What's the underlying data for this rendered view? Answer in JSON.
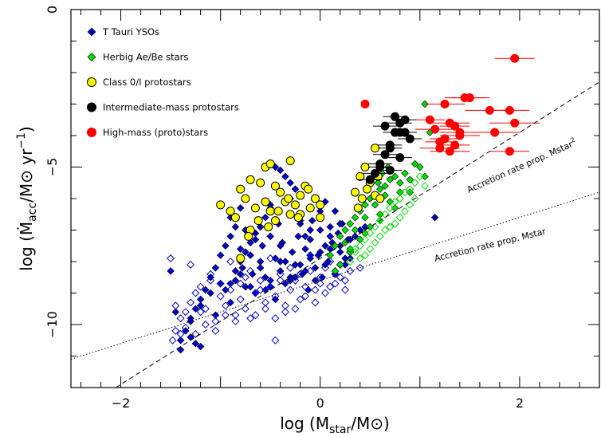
{
  "chart_data": {
    "type": "scatter",
    "title": "",
    "xlabel": "log (M_star/M⊙)",
    "ylabel": "log (Ṁ_acc/M⊙ yr⁻¹)",
    "xlim": [
      -2.5,
      2.8
    ],
    "ylim": [
      -12,
      0
    ],
    "x_ticks": [
      -2,
      0,
      2
    ],
    "y_ticks": [
      0,
      -5,
      -10
    ],
    "grid": false,
    "legend_position": "top-left",
    "series": [
      {
        "name": "T Tauri YSOs",
        "marker": "diamond",
        "color": "#0000cc",
        "filled": true,
        "x": [
          -1.4,
          -1.35,
          -1.3,
          -1.25,
          -1.2,
          -1.15,
          -1.1,
          -1.05,
          -1.0,
          -0.95,
          -0.9,
          -0.85,
          -0.85,
          -0.8,
          -0.78,
          -0.75,
          -0.7,
          -0.68,
          -0.65,
          -0.6,
          -0.58,
          -0.55,
          -0.5,
          -0.5,
          -0.45,
          -0.42,
          -0.4,
          -0.38,
          -0.35,
          -0.3,
          -0.3,
          -0.28,
          -0.25,
          -0.22,
          -0.2,
          -0.18,
          -0.15,
          -0.12,
          -0.1,
          -0.08,
          -0.05,
          -0.02,
          0.0,
          0.02,
          0.05,
          0.08,
          0.1,
          0.12,
          0.15,
          0.18,
          0.2,
          0.22,
          0.25,
          0.28,
          0.3,
          -0.9,
          -0.8,
          -0.7,
          -0.6,
          -0.5,
          -0.4,
          -0.3,
          -0.2,
          -0.1,
          0.0,
          0.1,
          0.2,
          -0.75,
          -0.65,
          -0.55,
          -0.45,
          -0.35,
          -0.25,
          -0.15,
          -0.05,
          0.05,
          0.15,
          0.25,
          -1.5,
          -1.45,
          -1.4,
          -1.3,
          -1.2,
          -1.1,
          -1.05,
          -1.0,
          -0.9,
          -0.8,
          -0.7,
          -0.6,
          -0.5,
          -0.4,
          -0.3,
          -0.2,
          -0.1,
          0.0,
          0.1,
          0.2,
          0.3,
          0.35,
          0.4,
          0.45,
          -0.2,
          -0.25,
          -0.3,
          -0.35,
          -0.4,
          -0.45,
          -0.5,
          -0.55,
          -0.6,
          -0.65,
          -0.7,
          -0.75,
          -0.8,
          -0.85,
          -0.9,
          -0.95,
          -0.1,
          -0.15,
          0.05,
          0.15,
          1.15,
          -1.3,
          -1.25,
          -1.2
        ],
        "y": [
          -10.8,
          -10.2,
          -9.8,
          -9.5,
          -9.2,
          -8.9,
          -8.5,
          -8.2,
          -7.8,
          -7.5,
          -7.2,
          -6.9,
          -8.6,
          -7.6,
          -8.2,
          -7.0,
          -7.8,
          -8.4,
          -7.3,
          -8.0,
          -7.5,
          -8.5,
          -7.2,
          -8.8,
          -7.9,
          -6.8,
          -8.3,
          -7.4,
          -8.0,
          -6.5,
          -8.6,
          -7.7,
          -8.1,
          -7.2,
          -6.8,
          -8.4,
          -7.6,
          -8.9,
          -7.3,
          -6.7,
          -8.2,
          -7.8,
          -7.0,
          -8.5,
          -7.5,
          -8.0,
          -6.9,
          -7.4,
          -8.3,
          -7.1,
          -7.7,
          -6.8,
          -8.1,
          -7.3,
          -7.9,
          -6.6,
          -6.3,
          -7.1,
          -6.9,
          -6.2,
          -7.5,
          -6.0,
          -6.7,
          -7.0,
          -6.4,
          -7.2,
          -6.8,
          -8.8,
          -9.0,
          -8.9,
          -9.2,
          -8.7,
          -8.5,
          -8.3,
          -8.6,
          -8.1,
          -8.4,
          -7.9,
          -8.3,
          -9.6,
          -10.5,
          -9.9,
          -9.4,
          -9.0,
          -9.7,
          -8.7,
          -9.3,
          -8.4,
          -8.8,
          -8.2,
          -8.6,
          -8.0,
          -8.5,
          -8.1,
          -7.9,
          -7.7,
          -7.6,
          -7.5,
          -7.3,
          -7.2,
          -7.0,
          -6.9,
          -5.9,
          -5.7,
          -5.5,
          -5.3,
          -5.1,
          -5.0,
          -6.3,
          -6.6,
          -6.9,
          -7.1,
          -7.4,
          -7.7,
          -8.0,
          -8.3,
          -8.7,
          -8.9,
          -7.8,
          -7.2,
          -6.1,
          -6.4,
          -6.6,
          -10.4,
          -10.6,
          -10.7
        ]
      },
      {
        "name": "T Tauri YSOs (open)",
        "marker": "diamond",
        "color": "#0000cc",
        "filled": false,
        "x": [
          -1.45,
          -1.4,
          -1.35,
          -1.3,
          -1.25,
          -1.2,
          -1.15,
          -1.1,
          -1.05,
          -1.0,
          -0.95,
          -0.9,
          -0.85,
          -0.8,
          -0.75,
          -0.7,
          -0.65,
          -0.6,
          -0.55,
          -0.5,
          -0.45,
          -0.4,
          -0.35,
          -0.3,
          -0.25,
          -0.2,
          -0.15,
          -0.1,
          -0.05,
          0.0,
          0.05,
          0.1,
          0.15,
          0.2,
          0.25,
          0.3,
          -1.48,
          -1.35,
          -1.25,
          -1.15,
          -1.05,
          -0.95,
          -0.85,
          -0.75,
          -0.65,
          -0.55,
          -0.45,
          -0.35,
          -0.25,
          -0.15,
          -0.05,
          0.05,
          0.15,
          0.25,
          -1.5,
          -1.3,
          -1.1,
          -0.9,
          -0.7,
          -0.5,
          -0.3,
          -0.1,
          0.1,
          0.3,
          -1.4,
          -1.2,
          -1.0,
          -0.8,
          -0.6,
          -0.4,
          -0.2,
          0.0,
          0.2,
          0.4,
          -0.45,
          -1.45
        ],
        "y": [
          -10.2,
          -9.8,
          -9.6,
          -9.3,
          -9.0,
          -8.8,
          -9.5,
          -8.6,
          -9.9,
          -8.7,
          -9.4,
          -8.9,
          -9.7,
          -9.2,
          -8.5,
          -9.8,
          -9.0,
          -8.6,
          -9.3,
          -8.8,
          -9.1,
          -8.4,
          -9.6,
          -8.9,
          -8.6,
          -9.2,
          -8.8,
          -8.3,
          -8.9,
          -8.5,
          -8.2,
          -8.8,
          -8.4,
          -8.1,
          -8.6,
          -8.3,
          -10.5,
          -10.1,
          -10.3,
          -10.0,
          -10.2,
          -9.7,
          -9.9,
          -9.5,
          -9.7,
          -9.5,
          -9.8,
          -9.4,
          -9.5,
          -9.1,
          -9.3,
          -9.0,
          -8.7,
          -8.9,
          -7.9,
          -8.1,
          -8.4,
          -8.0,
          -8.3,
          -7.9,
          -8.2,
          -7.8,
          -8.0,
          -7.7,
          -10.3,
          -9.6,
          -9.1,
          -8.7,
          -8.9,
          -8.6,
          -8.4,
          -8.7,
          -8.5,
          -8.2,
          -10.5,
          -9.4
        ]
      },
      {
        "name": "Herbig Ae/Be stars",
        "marker": "diamond",
        "color": "#00dd00",
        "filled": true,
        "x": [
          0.1,
          0.15,
          0.2,
          0.25,
          0.3,
          0.35,
          0.4,
          0.45,
          0.5,
          0.55,
          0.6,
          0.65,
          0.7,
          0.75,
          0.8,
          0.85,
          0.9,
          0.95,
          1.0,
          1.05,
          1.1,
          0.2,
          0.3,
          0.4,
          0.5,
          0.6,
          0.7,
          0.8,
          0.25,
          0.35,
          0.45,
          0.55,
          0.65,
          0.15,
          0.3,
          0.45,
          0.6,
          0.75,
          0.9,
          1.05,
          0.5,
          0.58,
          0.62,
          0.68
        ],
        "y": [
          -7.8,
          -7.5,
          -7.2,
          -7.0,
          -6.8,
          -6.6,
          -6.4,
          -6.2,
          -6.0,
          -5.9,
          -5.7,
          -5.6,
          -5.4,
          -5.3,
          -5.5,
          -5.2,
          -5.4,
          -4.9,
          -5.0,
          -3.0,
          -3.9,
          -8.1,
          -7.7,
          -7.3,
          -6.9,
          -6.5,
          -6.1,
          -5.8,
          -7.4,
          -7.0,
          -6.6,
          -6.2,
          -5.9,
          -8.3,
          -7.6,
          -7.1,
          -6.7,
          -6.3,
          -5.8,
          -5.3,
          -6.0,
          -5.5,
          -5.2,
          -5.0
        ]
      },
      {
        "name": "Herbig Ae/Be stars (open)",
        "marker": "diamond",
        "color": "#00dd00",
        "filled": false,
        "x": [
          0.3,
          0.35,
          0.4,
          0.45,
          0.5,
          0.55,
          0.6,
          0.65,
          0.7,
          0.75,
          0.8,
          0.85,
          0.9,
          0.95,
          1.0,
          0.4,
          0.5,
          0.6,
          0.7,
          0.8,
          0.9,
          0.55,
          0.65,
          0.75,
          0.85,
          0.95,
          1.05,
          0.45,
          0.35
        ],
        "y": [
          -8.0,
          -7.7,
          -7.5,
          -7.3,
          -7.1,
          -6.9,
          -6.7,
          -6.5,
          -6.3,
          -6.1,
          -6.0,
          -5.8,
          -5.7,
          -5.5,
          -5.3,
          -7.9,
          -7.6,
          -7.2,
          -6.9,
          -6.6,
          -6.2,
          -7.4,
          -7.0,
          -6.8,
          -6.4,
          -6.0,
          -5.6,
          -7.8,
          -7.6
        ]
      },
      {
        "name": "Class 0/I protostars",
        "marker": "circle",
        "color": "#ffff00",
        "filled": true,
        "x": [
          -1.0,
          -0.9,
          -0.85,
          -0.8,
          -0.75,
          -0.7,
          -0.7,
          -0.65,
          -0.6,
          -0.55,
          -0.55,
          -0.5,
          -0.5,
          -0.45,
          -0.45,
          -0.4,
          -0.35,
          -0.3,
          -0.3,
          -0.25,
          -0.2,
          -0.2,
          -0.15,
          -0.1,
          -0.05,
          0.0,
          0.0,
          0.35,
          0.4,
          0.42,
          0.45,
          0.5,
          0.55,
          0.55,
          0.6,
          0.58,
          -0.8,
          -0.72,
          -0.62,
          -0.52,
          -0.42,
          -0.32,
          -0.22,
          -0.12,
          0.38,
          0.47
        ],
        "y": [
          -6.2,
          -6.4,
          -6.6,
          -5.7,
          -6.0,
          -5.4,
          -7.0,
          -6.3,
          -5.5,
          -6.1,
          -5.0,
          -6.4,
          -4.9,
          -6.7,
          -5.6,
          -5.8,
          -6.1,
          -4.8,
          -6.5,
          -6.2,
          -5.9,
          -6.5,
          -5.6,
          -6.3,
          -6.0,
          -6.2,
          -6.6,
          -5.8,
          -5.3,
          -6.0,
          -5.0,
          -5.5,
          -4.4,
          -5.9,
          -6.0,
          -5.3,
          -7.9,
          -7.2,
          -6.7,
          -6.9,
          -6.4,
          -6.0,
          -6.6,
          -5.7,
          -6.3,
          -5.7
        ]
      },
      {
        "name": "Intermediate-mass protostars",
        "marker": "circle",
        "color": "#000000",
        "filled": true,
        "x": [
          0.5,
          0.55,
          0.6,
          0.65,
          0.7,
          0.75,
          0.8,
          0.85,
          0.9,
          0.6,
          0.7,
          0.8,
          0.65,
          0.75,
          0.85,
          0.7,
          0.8
        ],
        "y": [
          -5.4,
          -5.2,
          -4.9,
          -4.6,
          -4.3,
          -3.9,
          -3.6,
          -3.5,
          -4.1,
          -5.0,
          -4.4,
          -3.9,
          -3.7,
          -3.4,
          -3.9,
          -5.1,
          -4.7
        ]
      },
      {
        "name": "High-mass (proto)stars",
        "marker": "circle",
        "color": "#ff0000",
        "filled": true,
        "x": [
          0.45,
          1.1,
          1.15,
          1.2,
          1.25,
          1.3,
          1.35,
          1.4,
          1.45,
          1.5,
          1.7,
          1.9,
          1.95,
          1.95,
          1.75,
          1.9,
          1.3,
          1.4,
          1.25,
          1.35,
          1.2
        ],
        "y": [
          -3.0,
          -3.5,
          -3.8,
          -4.2,
          -3.0,
          -3.6,
          -4.3,
          -4.0,
          -2.8,
          -2.8,
          -3.2,
          -3.2,
          -1.55,
          -3.6,
          -3.9,
          -4.5,
          -4.5,
          -3.9,
          -4.1,
          -3.7,
          -4.4
        ],
        "x_err": [
          0,
          0.15,
          0.2,
          0.15,
          0.2,
          0.2,
          0.15,
          0.2,
          0.2,
          0.2,
          0.25,
          0.2,
          0.2,
          0.25,
          0.25,
          0.2,
          0.2,
          0.2,
          0.15,
          0.15,
          0.2
        ]
      }
    ],
    "lines": [
      {
        "name": "Accretion rate prop. Mstar²",
        "style": "dashed",
        "slope": 2,
        "intercept": -7.9
      },
      {
        "name": "Accretion rate prop. Mstar",
        "style": "dotted",
        "slope": 1,
        "intercept": -8.6
      }
    ],
    "annotations": [
      {
        "text": "Accretion rate prop. Mstar",
        "sup": "2"
      },
      {
        "text": "Accretion rate prop. Mstar",
        "sup": ""
      }
    ]
  }
}
